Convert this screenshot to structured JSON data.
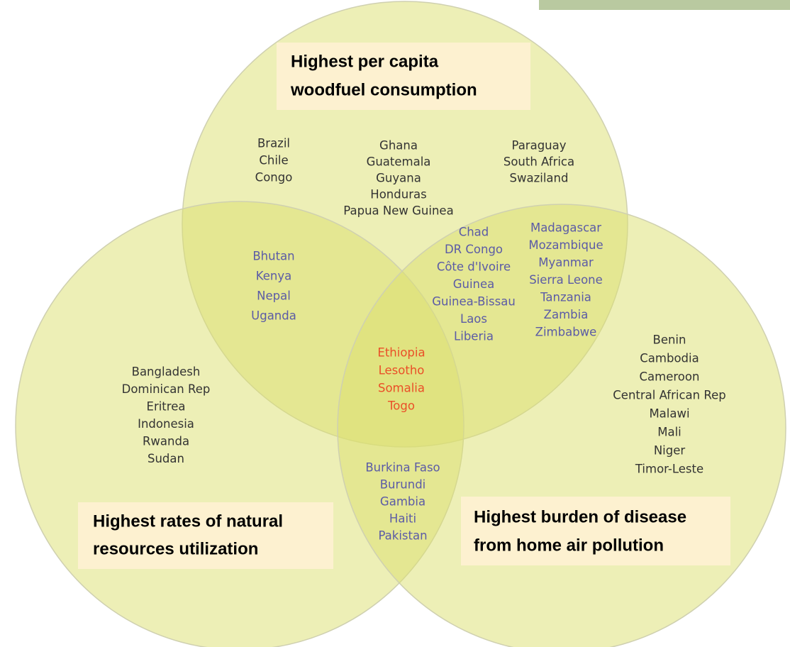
{
  "sets": [
    {
      "label_lines": [
        "Highest per capita",
        "woodfuel consumption"
      ]
    },
    {
      "label_lines": [
        "Highest rates of natural",
        "resources utilization"
      ]
    },
    {
      "label_lines": [
        "Highest burden of disease",
        "from home air pollution"
      ]
    }
  ],
  "regions": [
    {
      "countries": [
        "Brazil",
        "Chile",
        "Congo"
      ]
    },
    {
      "countries": [
        "Ghana",
        "Guatemala",
        "Guyana",
        "Honduras",
        "Papua New Guinea"
      ]
    },
    {
      "countries": [
        "Paraguay",
        "South Africa",
        "Swaziland"
      ]
    },
    {
      "countries": [
        "Bhutan",
        "Kenya",
        "Nepal",
        "Uganda"
      ]
    },
    {
      "countries": [
        "Chad",
        "DR Congo",
        "Côte d'Ivoire",
        "Guinea",
        "Guinea-Bissau",
        "Laos",
        "Liberia"
      ]
    },
    {
      "countries": [
        "Madagascar",
        "Mozambique",
        "Myanmar",
        "Sierra Leone",
        "Tanzania",
        "Zambia",
        "Zimbabwe"
      ]
    },
    {
      "countries": [
        "Ethiopia",
        "Lesotho",
        "Somalia",
        "Togo"
      ]
    },
    {
      "countries": [
        "Bangladesh",
        "Dominican Rep",
        "Eritrea",
        "Indonesia",
        "Rwanda",
        "Sudan"
      ]
    },
    {
      "countries": [
        "Benin",
        "Cambodia",
        "Cameroon",
        "Central African Rep",
        "Malawi",
        "Mali",
        "Niger",
        "Timor-Leste"
      ]
    },
    {
      "countries": [
        "Burkina Faso",
        "Burundi",
        "Gambia",
        "Haiti",
        "Pakistan"
      ]
    }
  ]
}
